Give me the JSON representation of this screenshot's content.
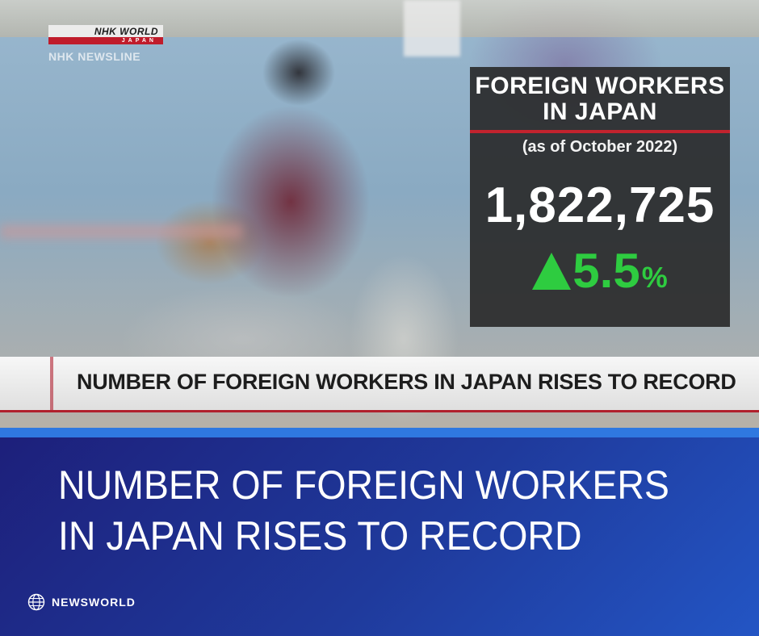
{
  "video": {
    "logo": {
      "brand": "NHK WORLD",
      "sub": "JAPAN"
    },
    "program": "NHK NEWSLINE",
    "info_box": {
      "title_line1": "FOREIGN WORKERS",
      "title_line2": "IN JAPAN",
      "subtitle": "(as of October 2022)",
      "total": "1,822,725",
      "change_value": "5.5",
      "change_unit": "%",
      "change_color": "#2ecc40"
    },
    "lower_third": "NUMBER OF FOREIGN WORKERS IN JAPAN RISES TO RECORD"
  },
  "banner": {
    "headline_line1": "NUMBER OF FOREIGN WORKERS",
    "headline_line2": "IN JAPAN RISES TO RECORD",
    "brand_icon": "globe-icon",
    "brand_name": "NEWSWORLD",
    "accent": "#2f78e0"
  }
}
